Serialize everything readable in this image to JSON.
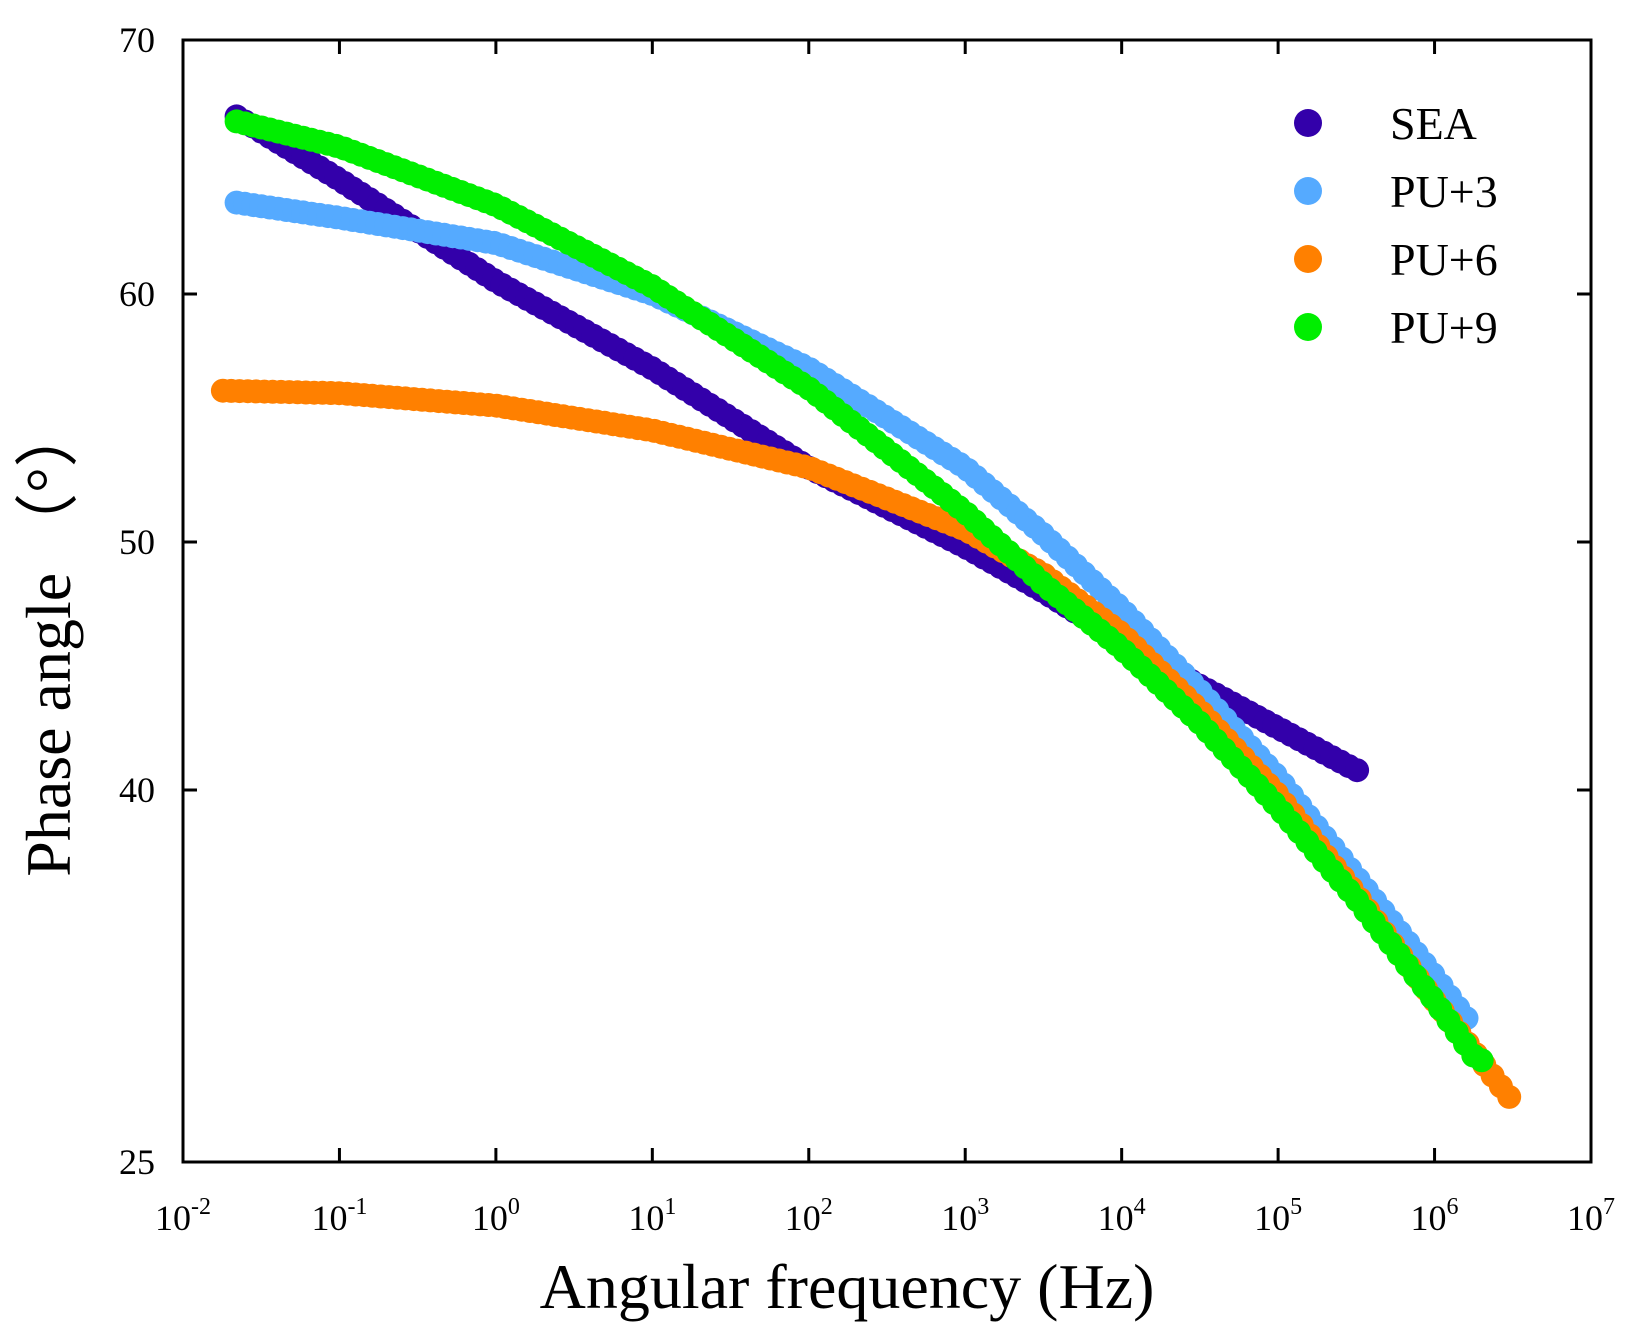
{
  "chart_data": {
    "type": "scatter",
    "title": "",
    "xlabel": "Angular frequency (Hz)",
    "ylabel": "Phase angle （°）",
    "xscale": "log",
    "xlim": [
      0.01,
      10000000
    ],
    "ylim": [
      25,
      70
    ],
    "grid": false,
    "legend_position": "top-right",
    "x_ticks": [
      {
        "base": "10",
        "exp": "-2"
      },
      {
        "base": "10",
        "exp": "-1"
      },
      {
        "base": "10",
        "exp": "0"
      },
      {
        "base": "10",
        "exp": "1"
      },
      {
        "base": "10",
        "exp": "2"
      },
      {
        "base": "10",
        "exp": "3"
      },
      {
        "base": "10",
        "exp": "4"
      },
      {
        "base": "10",
        "exp": "5"
      },
      {
        "base": "10",
        "exp": "6"
      },
      {
        "base": "10",
        "exp": "7"
      }
    ],
    "y_ticks": [
      "25",
      "40",
      "50",
      "60",
      "70"
    ],
    "series": [
      {
        "name": "SEA",
        "color": "#3300aa",
        "x_range": [
          0.022,
          320000
        ],
        "anchors": [
          [
            -1.66,
            67.0
          ],
          [
            -1.0,
            64.5
          ],
          [
            0.0,
            60.5
          ],
          [
            1.0,
            57.0
          ],
          [
            2.0,
            53.0
          ],
          [
            3.0,
            49.8
          ],
          [
            3.5,
            48.0
          ],
          [
            4.0,
            46.0
          ],
          [
            4.5,
            44.2
          ],
          [
            5.0,
            42.5
          ],
          [
            5.5,
            40.8
          ]
        ]
      },
      {
        "name": "PU+3",
        "color": "#55aaff",
        "x_range": [
          0.022,
          1600000
        ],
        "anchors": [
          [
            -1.66,
            63.6
          ],
          [
            -1.0,
            63.0
          ],
          [
            0.0,
            62.0
          ],
          [
            1.0,
            60.0
          ],
          [
            2.0,
            57.0
          ],
          [
            3.0,
            53.0
          ],
          [
            3.5,
            50.3
          ],
          [
            4.0,
            47.3
          ],
          [
            4.5,
            44.0
          ],
          [
            5.0,
            40.5
          ],
          [
            5.5,
            36.5
          ],
          [
            6.0,
            32.5
          ],
          [
            6.2,
            30.8
          ]
        ]
      },
      {
        "name": "PU+6",
        "color": "#ff8000",
        "x_range": [
          0.018,
          3000000
        ],
        "anchors": [
          [
            -1.74,
            56.1
          ],
          [
            -1.0,
            56.0
          ],
          [
            0.0,
            55.5
          ],
          [
            1.0,
            54.5
          ],
          [
            2.0,
            53.0
          ],
          [
            3.0,
            50.5
          ],
          [
            3.5,
            48.7
          ],
          [
            4.0,
            46.3
          ],
          [
            4.5,
            43.2
          ],
          [
            5.0,
            39.8
          ],
          [
            5.5,
            35.8
          ],
          [
            6.0,
            31.5
          ],
          [
            6.48,
            27.6
          ]
        ]
      },
      {
        "name": "PU+9",
        "color": "#00ee00",
        "x_range": [
          0.022,
          2000000
        ],
        "anchors": [
          [
            -1.66,
            66.8
          ],
          [
            -1.0,
            65.8
          ],
          [
            0.0,
            63.5
          ],
          [
            1.0,
            60.3
          ],
          [
            2.0,
            56.2
          ],
          [
            3.0,
            51.2
          ],
          [
            3.5,
            48.3
          ],
          [
            4.0,
            45.7
          ],
          [
            4.5,
            42.7
          ],
          [
            5.0,
            39.3
          ],
          [
            5.5,
            35.6
          ],
          [
            6.0,
            31.5
          ],
          [
            6.27,
            29.1
          ]
        ]
      }
    ]
  }
}
